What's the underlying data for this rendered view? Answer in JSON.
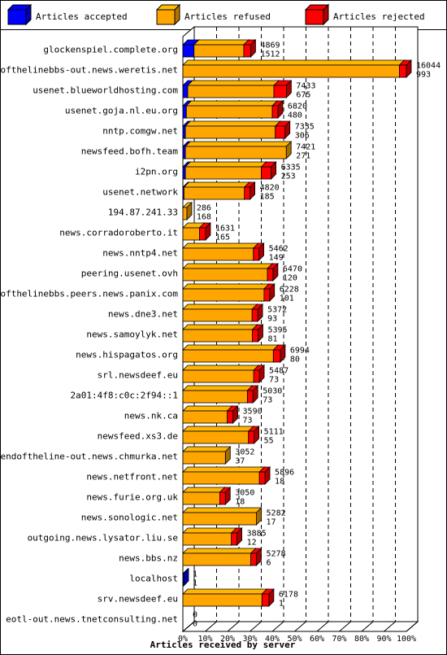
{
  "legend": [
    {
      "label": "Articles accepted",
      "color": "#0000ff"
    },
    {
      "label": "Articles refused",
      "color": "#ffa500"
    },
    {
      "label": "Articles rejected",
      "color": "#ff0000"
    }
  ],
  "chart_data": {
    "type": "bar",
    "orientation": "horizontal",
    "stacked": true,
    "xlabel": "Articles received by server",
    "x_ticks": [
      "0%",
      "10%",
      "20%",
      "30%",
      "40%",
      "50%",
      "60%",
      "70%",
      "80%",
      "90%",
      "100%"
    ],
    "xlim": [
      0,
      16044
    ],
    "grid": true,
    "legend_position": "top",
    "categories": [
      "glockenspiel.complete.org",
      "endofthelinebbs-out.news.weretis.net",
      "usenet.blueworldhosting.com",
      "usenet.goja.nl.eu.org",
      "nntp.comgw.net",
      "newsfeed.bofh.team",
      "i2pn.org",
      "usenet.network",
      "194.87.241.33",
      "news.corradoroberto.it",
      "news.nntp4.net",
      "peering.usenet.ovh",
      "endofthelinebbs.peers.news.panix.com",
      "news.dne3.net",
      "news.samoylyk.net",
      "news.hispagatos.org",
      "srl.newsdeef.eu",
      "2a01:4f8:c0c:2f94::1",
      "news.nk.ca",
      "newsfeed.xs3.de",
      "endoftheline-out.news.chmurka.net",
      "news.netfront.net",
      "news.furie.org.uk",
      "news.sonologic.net",
      "outgoing.news.lysator.liu.se",
      "news.bbs.nz",
      "localhost",
      "srv.newsdeef.eu",
      "eotl-out.news.tnetconsulting.net"
    ],
    "totals": [
      4869,
      16044,
      7433,
      6820,
      7335,
      7421,
      6335,
      4820,
      286,
      1631,
      5462,
      6470,
      6228,
      5372,
      5395,
      6994,
      5487,
      5030,
      3590,
      5111,
      3052,
      5896,
      3050,
      5282,
      3885,
      5278,
      1,
      6178,
      0
    ],
    "second_values": [
      1512,
      993,
      675,
      480,
      306,
      271,
      253,
      185,
      168,
      165,
      149,
      120,
      101,
      93,
      81,
      80,
      73,
      73,
      73,
      55,
      37,
      18,
      18,
      17,
      12,
      6,
      1,
      1,
      0
    ],
    "series": [
      {
        "name": "Articles accepted",
        "values": [
          800,
          0,
          350,
          250,
          180,
          180,
          180,
          80,
          0,
          0,
          0,
          0,
          0,
          0,
          0,
          0,
          0,
          0,
          0,
          0,
          0,
          0,
          0,
          0,
          0,
          0,
          1,
          0,
          0
        ]
      },
      {
        "name": "Articles refused",
        "values": [
          3569,
          15544,
          6183,
          6170,
          6455,
          7241,
          5455,
          4340,
          286,
          1191,
          5062,
          6070,
          5828,
          4972,
          4995,
          6494,
          5087,
          4630,
          3190,
          4711,
          3052,
          5496,
          2650,
          5282,
          3485,
          4878,
          0,
          5678,
          0
        ]
      },
      {
        "name": "Articles rejected",
        "values": [
          500,
          500,
          900,
          400,
          700,
          0,
          700,
          400,
          0,
          440,
          400,
          400,
          400,
          400,
          400,
          500,
          400,
          400,
          400,
          400,
          0,
          400,
          400,
          0,
          400,
          400,
          0,
          500,
          0
        ]
      }
    ]
  }
}
